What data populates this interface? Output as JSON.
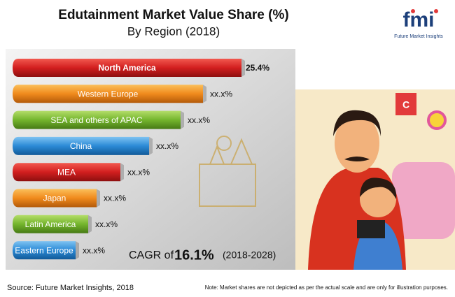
{
  "title": "Edutainment Market Value Share (%)",
  "subtitle": "By Region (2018)",
  "logo": {
    "mark": "fmi",
    "name": "Future Market Insights"
  },
  "bars": [
    {
      "label": "North America",
      "value": "25.4%"
    },
    {
      "label": "Western Europe",
      "value": "xx.x%"
    },
    {
      "label": "SEA and others of APAC",
      "value": "xx.x%"
    },
    {
      "label": "China",
      "value": "xx.x%"
    },
    {
      "label": "MEA",
      "value": "xx.x%"
    },
    {
      "label": "Japan",
      "value": "xx.x%"
    },
    {
      "label": "Latin America",
      "value": "xx.x%"
    },
    {
      "label": "Eastern Europe",
      "value": "xx.x%"
    }
  ],
  "cagr": {
    "prefix": "CAGR of",
    "value": "16.1%",
    "period": "(2018-2028)"
  },
  "illustration_letter": "C",
  "source": "Source: Future Market Insights, 2018",
  "note": "Note: Market shares are not depicted as per the actual scale and are only for illustration purposes."
}
